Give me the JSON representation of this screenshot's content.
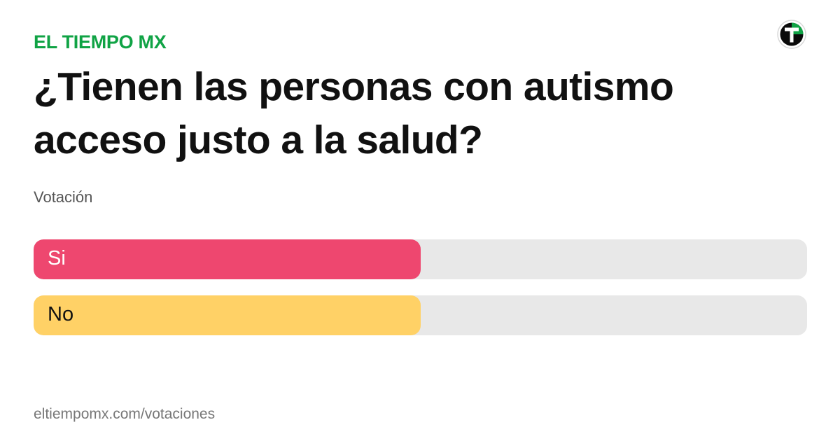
{
  "brand": {
    "name": "EL TIEMPO MX",
    "color": "#10a345",
    "logo_icon": "el-tiempo-t-logo-icon"
  },
  "poll": {
    "title": "¿Tienen las personas con autismo acceso justo a la salud?",
    "subtitle": "Votación",
    "options": [
      {
        "label": "Si",
        "fill_fraction": 0.5,
        "color": "#ee476f",
        "label_color": "#ffffff"
      },
      {
        "label": "No",
        "fill_fraction": 0.5,
        "color": "#ffd166",
        "label_color": "#111111"
      }
    ],
    "track_color": "#e8e8e8"
  },
  "footer": {
    "url": "eltiempomx.com/votaciones"
  }
}
